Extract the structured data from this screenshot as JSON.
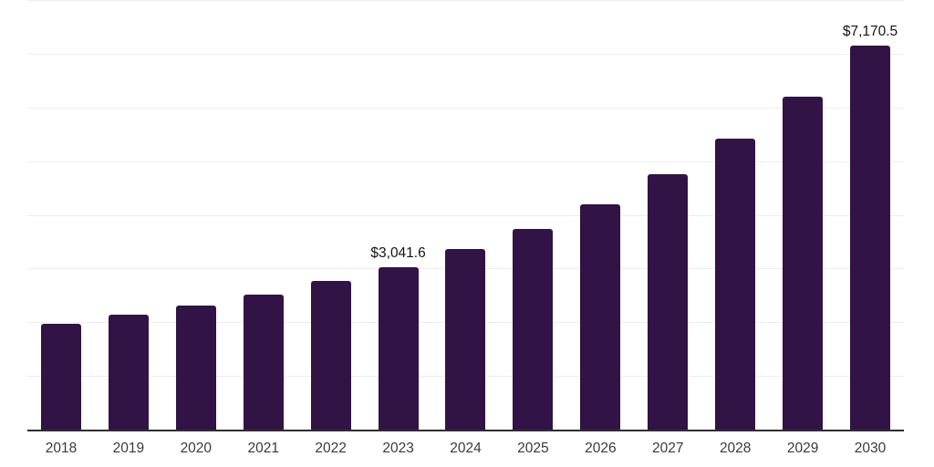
{
  "chart_data": {
    "type": "bar",
    "title": "",
    "categories": [
      "2018",
      "2019",
      "2020",
      "2021",
      "2022",
      "2023",
      "2024",
      "2025",
      "2026",
      "2027",
      "2028",
      "2029",
      "2030"
    ],
    "values": [
      1980,
      2150,
      2325,
      2535,
      2785,
      3041.6,
      3380,
      3750,
      4215,
      4770,
      5440,
      6210,
      7170.5
    ],
    "point_labels": [
      "",
      "",
      "",
      "",
      "",
      "$3,041.6",
      "",
      "",
      "",
      "",
      "",
      "",
      "$7,170.5"
    ],
    "xlabel": "",
    "ylabel": "",
    "ylim": [
      0,
      8000
    ],
    "gridline_step": 1000,
    "grid": true,
    "legend_position": "none",
    "colors": {
      "bar": "#321345",
      "axis": "#2f2f2f",
      "gridline": "#ededed",
      "tick_label": "#3a3a3a",
      "point_label": "#141414",
      "background": "#ffffff"
    }
  }
}
